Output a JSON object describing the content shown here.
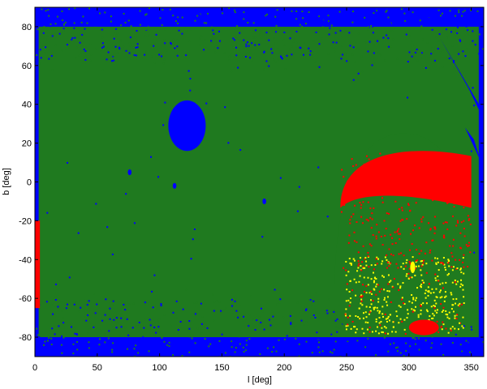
{
  "chart_data": {
    "type": "scatter",
    "title": "",
    "xlabel": "l [deg]",
    "ylabel": "b [deg]",
    "xlim": [
      0,
      360
    ],
    "ylim": [
      -90,
      90
    ],
    "x_ticks": [
      0,
      50,
      100,
      150,
      200,
      250,
      300,
      350
    ],
    "y_ticks": [
      -80,
      -60,
      -40,
      -20,
      0,
      20,
      40,
      60,
      80
    ],
    "grid": false,
    "legend": "none",
    "background_color": "#0000ff",
    "colors": {
      "blue": "#0000ff",
      "green": "#1f7a1f",
      "red": "#ff0000",
      "yellow": "#ffff00"
    },
    "regions": [
      {
        "name": "blue-hole-main",
        "color": "blue",
        "shape": "ellipse",
        "center": [
          122,
          29
        ],
        "radius": [
          15,
          13
        ]
      },
      {
        "name": "blue-hole-small-1",
        "color": "blue",
        "shape": "ellipse",
        "center": [
          76,
          5
        ],
        "radius": [
          1.5,
          1.5
        ]
      },
      {
        "name": "blue-hole-small-2",
        "color": "blue",
        "shape": "ellipse",
        "center": [
          112,
          -2
        ],
        "radius": [
          1.5,
          1.5
        ]
      },
      {
        "name": "blue-hole-small-3",
        "color": "blue",
        "shape": "ellipse",
        "center": [
          184,
          -10
        ],
        "radius": [
          1.5,
          1.5
        ]
      },
      {
        "name": "magellanic-region",
        "color": "green",
        "shape": "dome",
        "l_range": [
          240,
          352
        ],
        "b_range": [
          -80,
          25
        ]
      },
      {
        "name": "red-band-upper",
        "color": "red",
        "shape": "band",
        "l_range": [
          245,
          350
        ],
        "b_range": [
          -5,
          15
        ]
      },
      {
        "name": "red-spot-lower",
        "color": "red",
        "shape": "ellipse",
        "center": [
          312,
          -75
        ],
        "radius": [
          12,
          4
        ]
      },
      {
        "name": "yellow-spot",
        "color": "yellow",
        "shape": "ellipse",
        "center": [
          303,
          -44
        ],
        "radius": [
          2,
          3
        ]
      }
    ]
  }
}
